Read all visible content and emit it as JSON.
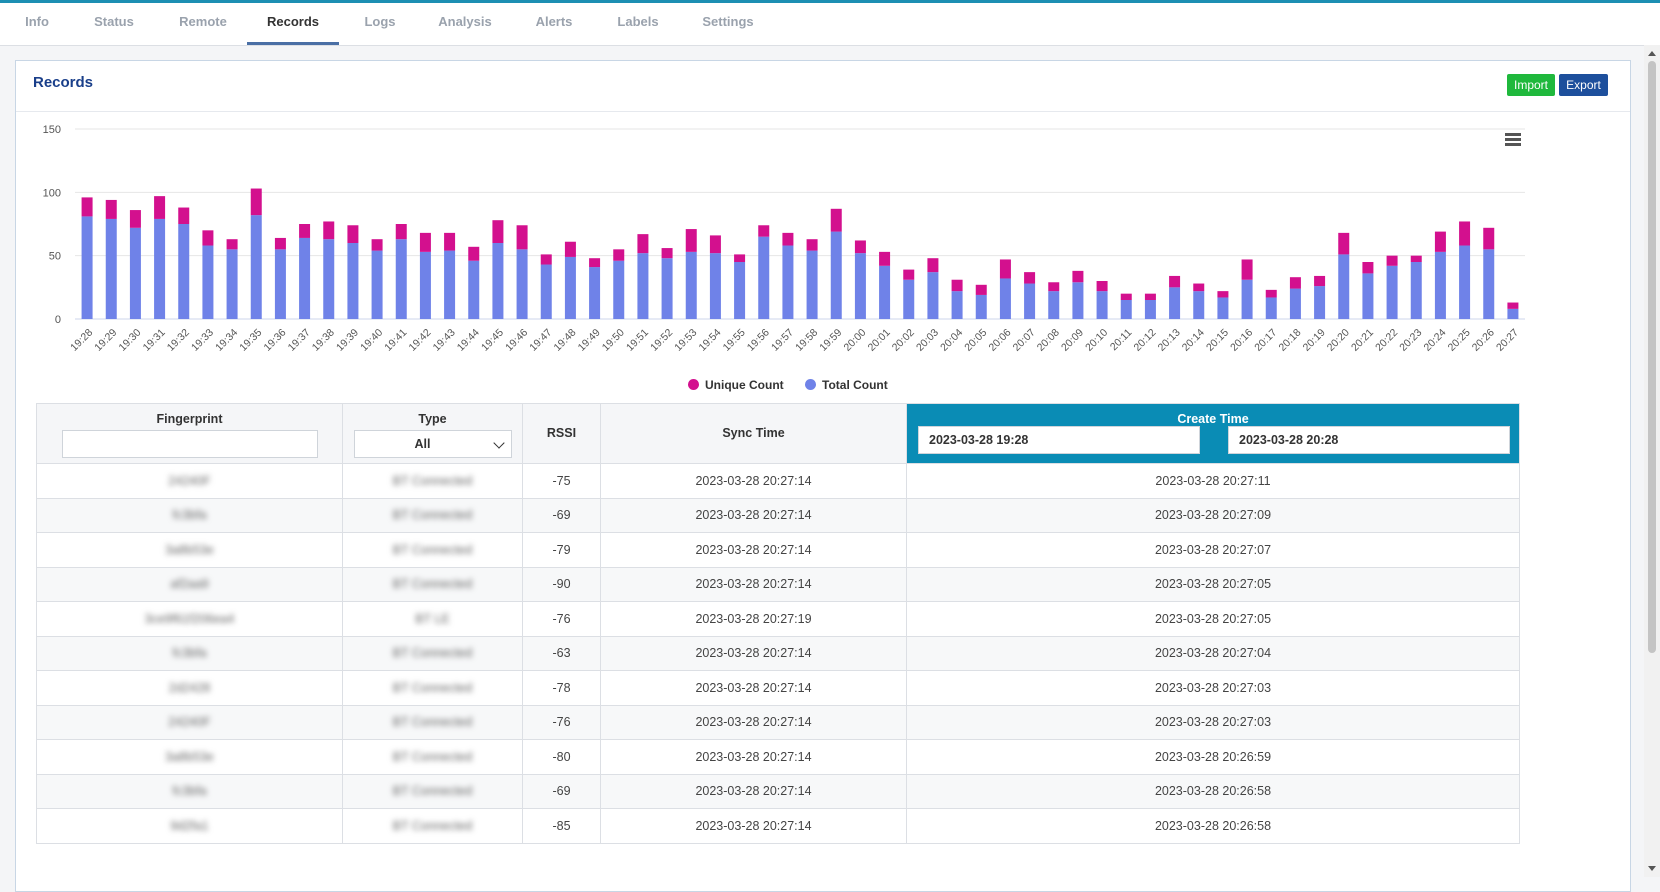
{
  "tabs": [
    "Info",
    "Status",
    "Remote",
    "Records",
    "Logs",
    "Analysis",
    "Alerts",
    "Labels",
    "Settings"
  ],
  "active_tab": "Records",
  "panel": {
    "title": "Records",
    "import_label": "Import",
    "export_label": "Export"
  },
  "chart_data": {
    "type": "bar",
    "stacked": true,
    "categories": [
      "19:28",
      "19:29",
      "19:30",
      "19:31",
      "19:32",
      "19:33",
      "19:34",
      "19:35",
      "19:36",
      "19:37",
      "19:38",
      "19:39",
      "19:40",
      "19:41",
      "19:42",
      "19:43",
      "19:44",
      "19:45",
      "19:46",
      "19:47",
      "19:48",
      "19:49",
      "19:50",
      "19:51",
      "19:52",
      "19:53",
      "19:54",
      "19:55",
      "19:56",
      "19:57",
      "19:58",
      "19:59",
      "20:00",
      "20:01",
      "20:02",
      "20:03",
      "20:04",
      "20:05",
      "20:06",
      "20:07",
      "20:08",
      "20:09",
      "20:10",
      "20:11",
      "20:12",
      "20:13",
      "20:14",
      "20:15",
      "20:16",
      "20:17",
      "20:18",
      "20:19",
      "20:20",
      "20:21",
      "20:22",
      "20:23",
      "20:24",
      "20:25",
      "20:26",
      "20:27"
    ],
    "series": [
      {
        "name": "Total Count",
        "color": "#6f82e8",
        "values": [
          81,
          79,
          72,
          79,
          75,
          58,
          55,
          82,
          55,
          64,
          63,
          60,
          54,
          63,
          53,
          54,
          46,
          60,
          55,
          43,
          49,
          41,
          46,
          52,
          48,
          53,
          52,
          45,
          65,
          58,
          54,
          69,
          52,
          42,
          31,
          37,
          22,
          19,
          32,
          28,
          22,
          29,
          22,
          15,
          15,
          25,
          22,
          17,
          31,
          17,
          24,
          26,
          51,
          36,
          42,
          45,
          53,
          58,
          55,
          8
        ]
      },
      {
        "name": "Unique Count",
        "color": "#d3108e",
        "values": [
          15,
          15,
          14,
          18,
          13,
          12,
          8,
          21,
          9,
          11,
          14,
          14,
          9,
          12,
          15,
          14,
          11,
          18,
          19,
          8,
          12,
          7,
          9,
          15,
          8,
          18,
          14,
          6,
          9,
          10,
          9,
          18,
          10,
          11,
          8,
          11,
          9,
          8,
          15,
          9,
          7,
          9,
          8,
          5,
          5,
          9,
          6,
          5,
          16,
          6,
          9,
          8,
          17,
          9,
          8,
          5,
          16,
          19,
          17,
          5
        ]
      }
    ],
    "yticks": [
      "0",
      "50",
      "100",
      "150"
    ],
    "ylim": [
      0,
      150
    ],
    "legend_position": "bottom-center"
  },
  "table": {
    "headers": {
      "fingerprint": "Fingerprint",
      "type": "Type",
      "rssi": "RSSI",
      "sync": "Sync Time",
      "create": "Create Time"
    },
    "filters": {
      "fingerprint": "",
      "type": "All",
      "create_from": "2023-03-28 19:28",
      "create_to": "2023-03-28 20:28"
    },
    "rows": [
      {
        "fingerprint": "24240F",
        "type": "BT Connected",
        "rssi": "-75",
        "sync": "2023-03-28 20:27:14",
        "create": "2023-03-28 20:27:11"
      },
      {
        "fingerprint": "fc3bfa",
        "type": "BT Connected",
        "rssi": "-69",
        "sync": "2023-03-28 20:27:14",
        "create": "2023-03-28 20:27:09"
      },
      {
        "fingerprint": "3a8b53e",
        "type": "BT Connected",
        "rssi": "-79",
        "sync": "2023-03-28 20:27:14",
        "create": "2023-03-28 20:27:07"
      },
      {
        "fingerprint": "af2aa9",
        "type": "BT Connected",
        "rssi": "-90",
        "sync": "2023-03-28 20:27:14",
        "create": "2023-03-28 20:27:05"
      },
      {
        "fingerprint": "3ce9f61f206ea4",
        "type": "BT LE",
        "rssi": "-76",
        "sync": "2023-03-28 20:27:19",
        "create": "2023-03-28 20:27:05"
      },
      {
        "fingerprint": "fc3bfa",
        "type": "BT Connected",
        "rssi": "-63",
        "sync": "2023-03-28 20:27:14",
        "create": "2023-03-28 20:27:04"
      },
      {
        "fingerprint": "2d2428",
        "type": "BT Connected",
        "rssi": "-78",
        "sync": "2023-03-28 20:27:14",
        "create": "2023-03-28 20:27:03"
      },
      {
        "fingerprint": "24240F",
        "type": "BT Connected",
        "rssi": "-76",
        "sync": "2023-03-28 20:27:14",
        "create": "2023-03-28 20:27:03"
      },
      {
        "fingerprint": "3a8b53e",
        "type": "BT Connected",
        "rssi": "-80",
        "sync": "2023-03-28 20:27:14",
        "create": "2023-03-28 20:26:59"
      },
      {
        "fingerprint": "fc3bfa",
        "type": "BT Connected",
        "rssi": "-69",
        "sync": "2023-03-28 20:27:14",
        "create": "2023-03-28 20:26:58"
      },
      {
        "fingerprint": "9d2fa1",
        "type": "BT Connected",
        "rssi": "-85",
        "sync": "2023-03-28 20:27:14",
        "create": "2023-03-28 20:26:58"
      }
    ]
  }
}
